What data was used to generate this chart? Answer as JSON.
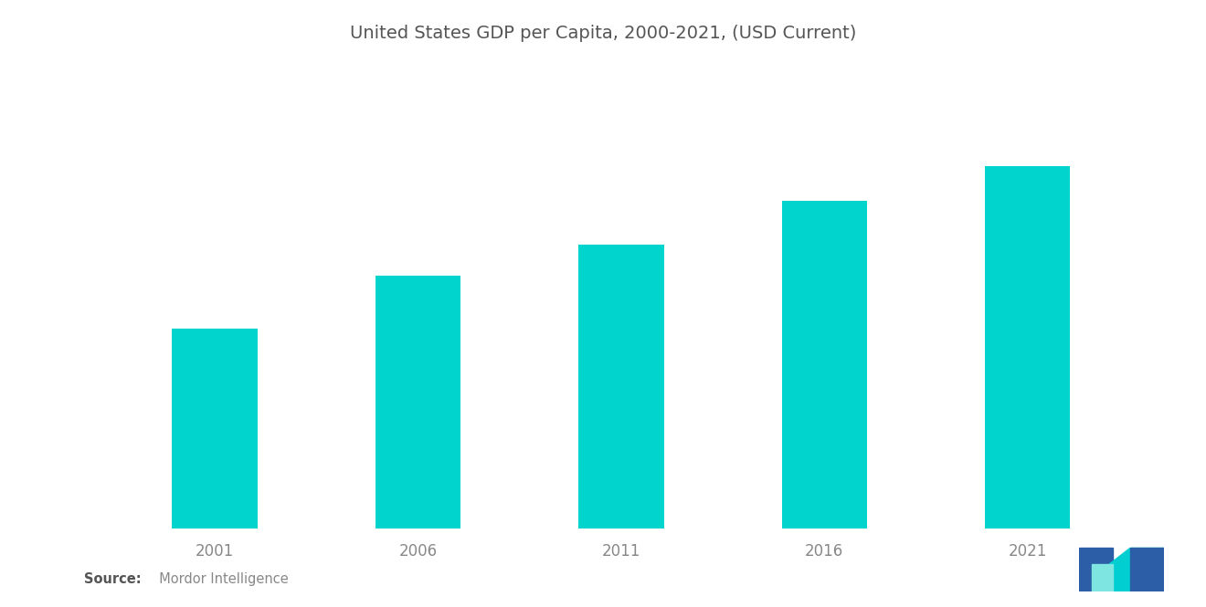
{
  "title": "United States GDP per Capita, 2000-2021, (USD Current)",
  "categories": [
    "2001",
    "2006",
    "2011",
    "2016",
    "2021"
  ],
  "values": [
    35000,
    44308,
    49781,
    57589,
    63544
  ],
  "bar_color": "#00D4CC",
  "background_color": "#ffffff",
  "title_fontsize": 14,
  "tick_fontsize": 12,
  "source_bold": "Source:",
  "source_normal": "  Mordor Intelligence",
  "ylim": [
    0,
    80000
  ],
  "bar_width": 0.42,
  "title_color": "#555555",
  "tick_color": "#888888",
  "source_bold_color": "#555555",
  "source_normal_color": "#888888"
}
